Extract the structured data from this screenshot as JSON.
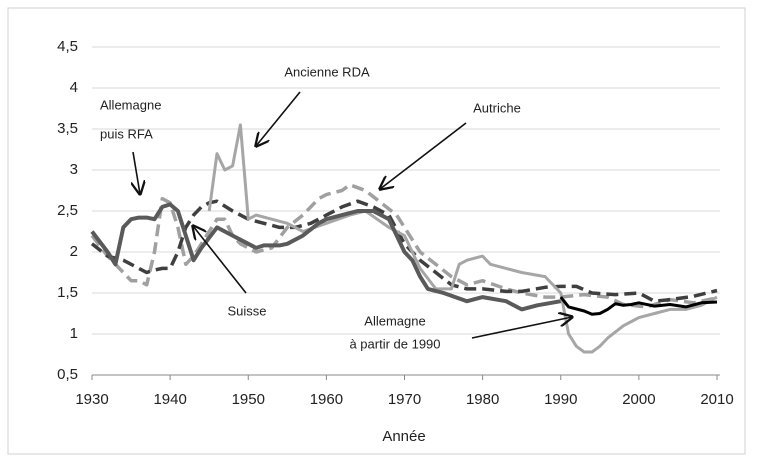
{
  "chart_data": {
    "type": "line",
    "x_label": "Année",
    "xlim": [
      1930,
      2010
    ],
    "xticks": [
      1930,
      1940,
      1950,
      1960,
      1970,
      1980,
      1990,
      2000,
      2010
    ],
    "ylim": [
      0.5,
      4.5
    ],
    "yticks": [
      {
        "value": 0.5,
        "label": "0,5"
      },
      1,
      {
        "value": 1.5,
        "label": "1,5"
      },
      2,
      {
        "value": 2.5,
        "label": "2,5"
      },
      3,
      {
        "value": 3.5,
        "label": "3,5"
      },
      4,
      {
        "value": 4.5,
        "label": "4,5"
      }
    ],
    "grid": true,
    "series": [
      {
        "color": "#a0a0a0",
        "style": "dashed",
        "x": [
          1930,
          1932,
          1934,
          1935,
          1936,
          1937,
          1938,
          1939,
          1940,
          1941,
          1942,
          1943,
          1944,
          1946,
          1947,
          1948,
          1949,
          1951,
          1953,
          1955,
          1957,
          1959,
          1960,
          1962,
          1963,
          1965,
          1967,
          1969,
          1970,
          1972,
          1974,
          1976,
          1978,
          1980,
          1983,
          1985,
          1988,
          1990,
          1993,
          1996,
          1998,
          2001,
          2004,
          2007,
          2010
        ],
        "values": [
          2.2,
          1.95,
          1.75,
          1.65,
          1.65,
          1.6,
          2.0,
          2.65,
          2.6,
          2.3,
          1.85,
          1.95,
          2.1,
          2.4,
          2.4,
          2.2,
          2.1,
          2.0,
          2.05,
          2.3,
          2.45,
          2.65,
          2.7,
          2.75,
          2.82,
          2.75,
          2.6,
          2.45,
          2.3,
          2.0,
          1.85,
          1.7,
          1.6,
          1.65,
          1.55,
          1.5,
          1.45,
          1.45,
          1.48,
          1.45,
          1.36,
          1.33,
          1.42,
          1.38,
          1.44
        ]
      },
      {
        "color": "#3f3f3f",
        "style": "dashed",
        "x": [
          1930,
          1932,
          1934,
          1936,
          1937,
          1938,
          1939,
          1940,
          1941,
          1942,
          1943,
          1944,
          1945,
          1946,
          1948,
          1950,
          1952,
          1954,
          1956,
          1958,
          1960,
          1962,
          1964,
          1966,
          1968,
          1970,
          1972,
          1974,
          1976,
          1978,
          1980,
          1983,
          1985,
          1988,
          1990,
          1992,
          1994,
          1997,
          2000,
          2002,
          2004,
          2007,
          2010
        ],
        "values": [
          2.1,
          1.95,
          1.9,
          1.8,
          1.75,
          1.78,
          1.8,
          1.8,
          2.0,
          2.3,
          2.45,
          2.55,
          2.6,
          2.62,
          2.5,
          2.4,
          2.35,
          2.3,
          2.3,
          2.35,
          2.45,
          2.55,
          2.62,
          2.55,
          2.45,
          2.1,
          1.9,
          1.75,
          1.6,
          1.55,
          1.55,
          1.52,
          1.52,
          1.57,
          1.58,
          1.58,
          1.5,
          1.48,
          1.5,
          1.4,
          1.42,
          1.46,
          1.53
        ]
      },
      {
        "color": "#a6a6a6",
        "style": "solid",
        "x": [
          1945,
          1946,
          1947,
          1948,
          1949,
          1950,
          1951,
          1955,
          1957,
          1960,
          1963,
          1965,
          1968,
          1970,
          1972,
          1974,
          1976,
          1977,
          1978,
          1980,
          1981,
          1983,
          1985,
          1988,
          1990,
          1991,
          1992,
          1993,
          1994,
          1995,
          1996,
          1998,
          2000,
          2002,
          2004,
          2006,
          2008,
          2010
        ],
        "values": [
          2.5,
          3.2,
          3.0,
          3.05,
          3.55,
          2.4,
          2.45,
          2.35,
          2.25,
          2.35,
          2.45,
          2.5,
          2.3,
          2.2,
          1.8,
          1.55,
          1.55,
          1.85,
          1.9,
          1.95,
          1.85,
          1.8,
          1.75,
          1.7,
          1.5,
          1.0,
          0.85,
          0.78,
          0.78,
          0.85,
          0.95,
          1.1,
          1.2,
          1.25,
          1.3,
          1.3,
          1.35,
          1.45
        ]
      },
      {
        "color": "#5a5a5a",
        "style": "solid",
        "x": [
          1930,
          1932,
          1933,
          1934,
          1935,
          1936,
          1937,
          1938,
          1939,
          1940,
          1941,
          1942,
          1943,
          1944,
          1946,
          1948,
          1950,
          1951,
          1952,
          1954,
          1955,
          1957,
          1959,
          1960,
          1962,
          1964,
          1966,
          1968,
          1970,
          1971,
          1972,
          1973,
          1975,
          1978,
          1980,
          1983,
          1985,
          1987,
          1990
        ],
        "values": [
          2.25,
          2.0,
          1.85,
          2.3,
          2.4,
          2.42,
          2.42,
          2.4,
          2.55,
          2.58,
          2.5,
          2.2,
          1.9,
          2.05,
          2.3,
          2.2,
          2.1,
          2.05,
          2.08,
          2.08,
          2.1,
          2.2,
          2.35,
          2.4,
          2.45,
          2.5,
          2.5,
          2.4,
          2.0,
          1.9,
          1.7,
          1.55,
          1.5,
          1.4,
          1.45,
          1.4,
          1.3,
          1.35,
          1.4
        ]
      },
      {
        "color": "#000000",
        "style": "solid",
        "x": [
          1990,
          1991,
          1993,
          1994,
          1995,
          1996,
          1997,
          1998,
          1999,
          2000,
          2002,
          2004,
          2006,
          2008,
          2010
        ],
        "values": [
          1.45,
          1.33,
          1.28,
          1.24,
          1.25,
          1.3,
          1.37,
          1.35,
          1.36,
          1.38,
          1.34,
          1.36,
          1.33,
          1.38,
          1.39
        ]
      }
    ],
    "annotations": [
      {
        "lines": [
          "Ancienne RDA"
        ]
      },
      {
        "lines": [
          "Allemagne",
          "puis RFA"
        ]
      },
      {
        "lines": [
          "Autriche"
        ]
      },
      {
        "lines": [
          "Suisse"
        ]
      },
      {
        "lines": [
          "Allemagne",
          "à partir de 1990"
        ]
      }
    ]
  }
}
